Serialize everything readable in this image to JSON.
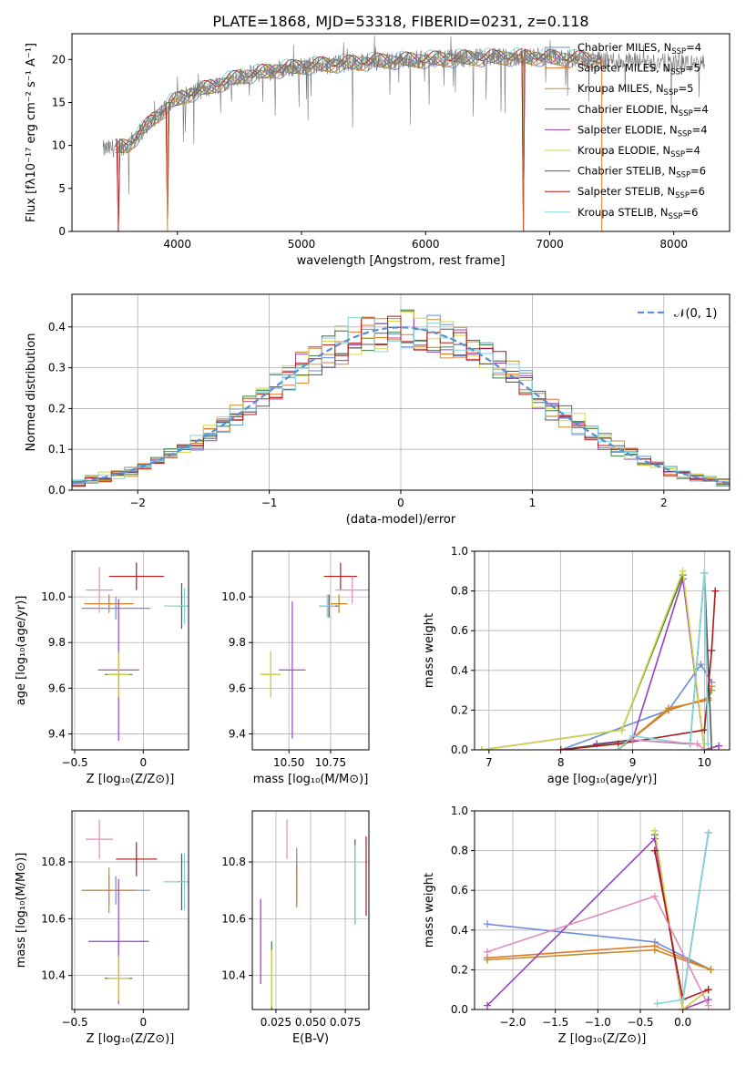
{
  "figure_title": "PLATE=1868, MJD=53318, FIBERID=0231, z=0.118",
  "model_colors": {
    "Chabrier MILES": "#6a8fd6",
    "Salpeter MILES": "#e07a28",
    "Kroupa MILES": "#c98a2e",
    "Chabrier ELODIE": "#3f7f3f",
    "Salpeter ELODIE": "#9a3fc0",
    "Kroupa ELODIE": "#d4d44a",
    "Chabrier STELIB": "#555555",
    "Salpeter STELIB": "#b01818",
    "Kroupa STELIB": "#7fd6dc"
  },
  "chart_data": [
    {
      "id": "spectrum",
      "type": "line",
      "title": "PLATE=1868, MJD=53318, FIBERID=0231, z=0.118",
      "xlabel": "wavelength [Angstrom, rest frame]",
      "ylabel": "Flux [fλ10⁻¹⁷ erg cm⁻² s⁻¹ A⁻¹]",
      "xlim": [
        3150,
        8450
      ],
      "ylim": [
        0,
        23
      ],
      "xticks": [
        4000,
        5000,
        6000,
        7000,
        8000
      ],
      "yticks": [
        0,
        5,
        10,
        15,
        20
      ],
      "grid": false,
      "legend_position": "top-right",
      "legend": [
        {
          "label": "Chabrier MILES, N",
          "sub": "SSP",
          "suffix": "=4",
          "color": "#6a8fd6"
        },
        {
          "label": "Salpeter MILES, N",
          "sub": "SSP",
          "suffix": "=5",
          "color": "#e07a28"
        },
        {
          "label": "Kroupa MILES, N",
          "sub": "SSP",
          "suffix": "=5",
          "color": "#c98a2e"
        },
        {
          "label": "Chabrier ELODIE, N",
          "sub": "SSP",
          "suffix": "=4",
          "color": "#3f7f3f"
        },
        {
          "label": "Salpeter ELODIE, N",
          "sub": "SSP",
          "suffix": "=4",
          "color": "#9a3fc0"
        },
        {
          "label": "Kroupa ELODIE, N",
          "sub": "SSP",
          "suffix": "=4",
          "color": "#d4d44a"
        },
        {
          "label": "Chabrier STELIB, N",
          "sub": "SSP",
          "suffix": "=6",
          "color": "#555555"
        },
        {
          "label": "Salpeter STELIB, N",
          "sub": "SSP",
          "suffix": "=6",
          "color": "#b01818"
        },
        {
          "label": "Kroupa STELIB, N",
          "sub": "SSP",
          "suffix": "=6",
          "color": "#7fd6dc"
        }
      ],
      "continuum": {
        "x": [
          3400,
          3600,
          3800,
          3950,
          4100,
          4300,
          4500,
          4800,
          5000,
          5300,
          5600,
          6000,
          6400,
          6800,
          7200,
          7600,
          8000,
          8250
        ],
        "y": [
          9.5,
          10.0,
          13.0,
          15.0,
          16.0,
          17.0,
          18.0,
          18.8,
          19.2,
          19.5,
          19.8,
          20.0,
          20.2,
          20.3,
          20.1,
          19.8,
          19.6,
          19.5
        ]
      },
      "data_range": [
        3400,
        8250
      ],
      "model_range": [
        3500,
        7420
      ],
      "dropouts": [
        3520,
        3920,
        6790,
        7420
      ]
    },
    {
      "id": "residual_histogram",
      "type": "step",
      "xlabel": "(data-model)/error",
      "ylabel": "Normed distribution",
      "xlim": [
        -2.5,
        2.5
      ],
      "ylim": [
        0,
        0.48
      ],
      "xticks": [
        -2,
        -1,
        0,
        1,
        2
      ],
      "yticks": [
        0,
        0.1,
        0.2,
        0.3,
        0.4
      ],
      "grid": true,
      "legend_position": "top-right",
      "legend": [
        {
          "label": "𝒩(0, 1)",
          "color": "#5a8fd6",
          "style": "dashed"
        }
      ],
      "bin_width": 0.1,
      "bin_start": -2.5,
      "envelope": "gaussian",
      "peak_value": 0.46
    },
    {
      "id": "age_vs_Z",
      "type": "errorbar",
      "xlabel": "Z [log₁₀(Z/Z⊙)]",
      "ylabel": "age  [log₁₀(age/yr)]",
      "xlim": [
        -0.52,
        0.33
      ],
      "ylim": [
        9.33,
        10.2
      ],
      "xticks": [
        -0.5,
        0.0
      ],
      "yticks": [
        9.4,
        9.6,
        9.8,
        10.0
      ],
      "grid": true,
      "points": [
        {
          "model": "Chabrier MILES",
          "x": -0.2,
          "y": 9.95,
          "xerr": 0.25,
          "yerr": 0.05
        },
        {
          "model": "Salpeter MILES",
          "x": -0.25,
          "y": 9.97,
          "xerr": 0.18,
          "yerr": 0.04
        },
        {
          "model": "Kroupa MILES",
          "x": -0.25,
          "y": 9.97,
          "xerr": 0.15,
          "yerr": 0.04
        },
        {
          "model": "Chabrier ELODIE",
          "x": -0.18,
          "y": 9.66,
          "xerr": 0.1,
          "yerr": 0.1
        },
        {
          "model": "Salpeter ELODIE",
          "x": -0.18,
          "y": 9.68,
          "xerr": 0.15,
          "yerr": 0.31
        },
        {
          "model": "Kroupa ELODIE",
          "x": -0.18,
          "y": 9.66,
          "xerr": 0.08,
          "yerr": 0.1
        },
        {
          "model": "Chabrier STELIB",
          "x": 0.28,
          "y": 9.96,
          "xerr": 0.03,
          "yerr": 0.1
        },
        {
          "model": "Salpeter STELIB",
          "x": -0.05,
          "y": 10.09,
          "xerr": 0.2,
          "yerr": 0.06
        },
        {
          "model": "Kroupa STELIB",
          "x": 0.3,
          "y": 9.96,
          "xerr": 0.15,
          "yerr": 0.08
        },
        {
          "model": "Pink",
          "x": -0.32,
          "y": 10.03,
          "xerr": 0.1,
          "yerr": 0.1
        }
      ]
    },
    {
      "id": "age_vs_mass",
      "type": "errorbar",
      "xlabel": "mass [log₁₀(M/M⊙)]",
      "ylabel": "",
      "xlim": [
        10.28,
        10.98
      ],
      "ylim": [
        9.33,
        10.2
      ],
      "xticks": [
        10.5,
        10.75
      ],
      "xticklabels": [
        "10.50",
        "10.75"
      ],
      "yticks": [
        9.4,
        9.6,
        9.8,
        10.0
      ],
      "grid": true,
      "points": [
        {
          "model": "Chabrier MILES",
          "x": 10.74,
          "y": 9.96,
          "xerr": 0.06,
          "yerr": 0.05
        },
        {
          "model": "Salpeter MILES",
          "x": 10.8,
          "y": 9.97,
          "xerr": 0.05,
          "yerr": 0.04
        },
        {
          "model": "Kroupa MILES",
          "x": 10.8,
          "y": 9.97,
          "xerr": 0.05,
          "yerr": 0.04
        },
        {
          "model": "Chabrier ELODIE",
          "x": 10.39,
          "y": 9.66,
          "xerr": 0.06,
          "yerr": 0.1
        },
        {
          "model": "Salpeter ELODIE",
          "x": 10.52,
          "y": 9.68,
          "xerr": 0.08,
          "yerr": 0.3
        },
        {
          "model": "Kroupa ELODIE",
          "x": 10.39,
          "y": 9.66,
          "xerr": 0.06,
          "yerr": 0.1
        },
        {
          "model": "Chabrier STELIB",
          "x": 10.74,
          "y": 9.96,
          "xerr": 0.05,
          "yerr": 0.05
        },
        {
          "model": "Salpeter STELIB",
          "x": 10.81,
          "y": 10.09,
          "xerr": 0.1,
          "yerr": 0.06
        },
        {
          "model": "Kroupa STELIB",
          "x": 10.73,
          "y": 9.96,
          "xerr": 0.05,
          "yerr": 0.05
        },
        {
          "model": "Pink",
          "x": 10.88,
          "y": 10.03,
          "xerr": 0.1,
          "yerr": 0.06
        }
      ]
    },
    {
      "id": "weight_vs_age",
      "type": "line",
      "xlabel": "age  [log₁₀(age/yr)]",
      "ylabel": "mass weight",
      "xlim": [
        6.8,
        10.35
      ],
      "ylim": [
        0,
        1.0
      ],
      "xticks": [
        7,
        8,
        9,
        10
      ],
      "yticks": [
        0,
        0.2,
        0.4,
        0.6,
        0.8,
        1.0
      ],
      "grid": true,
      "series": [
        {
          "model": "Chabrier MILES",
          "x": [
            8.0,
            9.5,
            9.95,
            10.1
          ],
          "y": [
            0.0,
            0.2,
            0.43,
            0.34
          ]
        },
        {
          "model": "Salpeter MILES",
          "x": [
            8.8,
            9.5,
            10.05,
            10.1
          ],
          "y": [
            0.0,
            0.2,
            0.26,
            0.32
          ]
        },
        {
          "model": "Kroupa MILES",
          "x": [
            8.8,
            9.5,
            10.05,
            10.1
          ],
          "y": [
            0.0,
            0.21,
            0.25,
            0.3
          ]
        },
        {
          "model": "Chabrier ELODIE",
          "x": [
            6.9,
            8.85,
            9.7,
            10.0
          ],
          "y": [
            0.0,
            0.1,
            0.88,
            0.0
          ]
        },
        {
          "model": "Salpeter ELODIE",
          "x": [
            8.5,
            9.0,
            9.7,
            10.0,
            10.2
          ],
          "y": [
            0.03,
            0.05,
            0.86,
            0.0,
            0.02
          ]
        },
        {
          "model": "Kroupa ELODIE",
          "x": [
            6.9,
            8.85,
            9.7,
            10.0
          ],
          "y": [
            0.0,
            0.1,
            0.9,
            0.0
          ]
        },
        {
          "model": "Chabrier STELIB",
          "x": [
            8.0,
            9.0,
            9.8,
            10.0,
            10.1
          ],
          "y": [
            0.0,
            0.05,
            0.03,
            0.89,
            0.0
          ]
        },
        {
          "model": "Salpeter STELIB",
          "x": [
            8.0,
            8.8,
            10.0,
            10.1,
            10.15
          ],
          "y": [
            0.0,
            0.03,
            0.1,
            0.5,
            0.8
          ]
        },
        {
          "model": "Kroupa STELIB",
          "x": [
            8.8,
            9.0,
            9.8,
            10.0,
            10.05
          ],
          "y": [
            0.0,
            0.07,
            0.03,
            0.89,
            0.03
          ]
        },
        {
          "model": "Pink",
          "x": [
            9.0,
            9.9,
            10.0
          ],
          "y": [
            0.05,
            0.03,
            0.0
          ]
        }
      ]
    },
    {
      "id": "mass_vs_Z",
      "type": "errorbar",
      "xlabel": "Z [log₁₀(Z/Z⊙)]",
      "ylabel": "mass [log₁₀(M/M⊙)]",
      "xlim": [
        -0.52,
        0.33
      ],
      "ylim": [
        10.28,
        10.98
      ],
      "xticks": [
        -0.5,
        0.0
      ],
      "yticks": [
        10.4,
        10.6,
        10.8
      ],
      "grid": true,
      "points": [
        {
          "model": "Chabrier MILES",
          "x": -0.2,
          "y": 10.7,
          "xerr": 0.25,
          "yerr": 0.05
        },
        {
          "model": "Salpeter MILES",
          "x": -0.25,
          "y": 10.7,
          "xerr": 0.2,
          "yerr": 0.08
        },
        {
          "model": "Kroupa MILES",
          "x": -0.25,
          "y": 10.7,
          "xerr": 0.15,
          "yerr": 0.05
        },
        {
          "model": "Chabrier ELODIE",
          "x": -0.18,
          "y": 10.39,
          "xerr": 0.1,
          "yerr": 0.08
        },
        {
          "model": "Salpeter ELODIE",
          "x": -0.18,
          "y": 10.52,
          "xerr": 0.22,
          "yerr": 0.22
        },
        {
          "model": "Kroupa ELODIE",
          "x": -0.18,
          "y": 10.39,
          "xerr": 0.08,
          "yerr": 0.08
        },
        {
          "model": "Chabrier STELIB",
          "x": 0.28,
          "y": 10.73,
          "xerr": 0.03,
          "yerr": 0.1
        },
        {
          "model": "Salpeter STELIB",
          "x": -0.05,
          "y": 10.81,
          "xerr": 0.15,
          "yerr": 0.06
        },
        {
          "model": "Kroupa STELIB",
          "x": 0.3,
          "y": 10.73,
          "xerr": 0.15,
          "yerr": 0.1
        },
        {
          "model": "Pink",
          "x": -0.32,
          "y": 10.88,
          "xerr": 0.1,
          "yerr": 0.07
        }
      ]
    },
    {
      "id": "mass_vs_EBV",
      "type": "errorbar",
      "xlabel": "E(B-V)",
      "ylabel": "",
      "xlim": [
        0.008,
        0.092
      ],
      "ylim": [
        10.28,
        10.98
      ],
      "xticks": [
        0.025,
        0.05,
        0.075
      ],
      "xticklabels": [
        "0.025",
        "0.050",
        "0.075"
      ],
      "yticks": [
        10.4,
        10.6,
        10.8
      ],
      "grid": true,
      "points": [
        {
          "model": "Chabrier MILES",
          "x": 0.04,
          "y": 10.75,
          "xerr": 0,
          "yerr": 0.1
        },
        {
          "model": "Salpeter MILES",
          "x": 0.04,
          "y": 10.72,
          "xerr": 0,
          "yerr": 0.08
        },
        {
          "model": "Kroupa MILES",
          "x": 0.04,
          "y": 10.72,
          "xerr": 0,
          "yerr": 0.06
        },
        {
          "model": "Chabrier ELODIE",
          "x": 0.022,
          "y": 10.4,
          "xerr": 0,
          "yerr": 0.12
        },
        {
          "model": "Salpeter ELODIE",
          "x": 0.014,
          "y": 10.52,
          "xerr": 0,
          "yerr": 0.15
        },
        {
          "model": "Kroupa ELODIE",
          "x": 0.022,
          "y": 10.39,
          "xerr": 0,
          "yerr": 0.1
        },
        {
          "model": "Chabrier STELIB",
          "x": 0.082,
          "y": 10.73,
          "xerr": 0,
          "yerr": 0.15
        },
        {
          "model": "Salpeter STELIB",
          "x": 0.09,
          "y": 10.75,
          "xerr": 0,
          "yerr": 0.14
        },
        {
          "model": "Kroupa STELIB",
          "x": 0.082,
          "y": 10.72,
          "xerr": 0,
          "yerr": 0.14
        },
        {
          "model": "Pink",
          "x": 0.033,
          "y": 10.88,
          "xerr": 0,
          "yerr": 0.07
        }
      ]
    },
    {
      "id": "weight_vs_Z",
      "type": "line",
      "xlabel": "Z [log₁₀(Z/Z⊙)]",
      "ylabel": "mass weight",
      "xlim": [
        -2.45,
        0.55
      ],
      "ylim": [
        0,
        1.0
      ],
      "xticks": [
        -2.0,
        -1.5,
        -1.0,
        -0.5,
        0.0
      ],
      "xticklabels": [
        "−2.0",
        "−1.5",
        "−1.0",
        "−0.5",
        "0.0"
      ],
      "yticks": [
        0,
        0.2,
        0.4,
        0.6,
        0.8,
        1.0
      ],
      "grid": true,
      "series": [
        {
          "model": "Chabrier MILES",
          "x": [
            -2.3,
            -0.33,
            0.33
          ],
          "y": [
            0.43,
            0.34,
            0.2
          ]
        },
        {
          "model": "Salpeter MILES",
          "x": [
            -2.3,
            -0.33,
            0.33
          ],
          "y": [
            0.26,
            0.32,
            0.2
          ]
        },
        {
          "model": "Kroupa MILES",
          "x": [
            -2.3,
            -0.33,
            0.33
          ],
          "y": [
            0.25,
            0.3,
            0.2
          ]
        },
        {
          "model": "Chabrier ELODIE",
          "x": [
            -0.33,
            0.0,
            0.3
          ],
          "y": [
            0.88,
            0.0,
            0.1
          ]
        },
        {
          "model": "Salpeter ELODIE",
          "x": [
            -2.3,
            -0.33,
            0.0,
            0.3
          ],
          "y": [
            0.02,
            0.86,
            0.0,
            0.05
          ]
        },
        {
          "model": "Kroupa ELODIE",
          "x": [
            -0.33,
            0.0,
            0.3
          ],
          "y": [
            0.9,
            0.0,
            0.1
          ]
        },
        {
          "model": "Chabrier STELIB",
          "x": [
            -0.33,
            0.0,
            0.3
          ],
          "y": [
            0.8,
            0.05,
            0.89
          ]
        },
        {
          "model": "Salpeter STELIB",
          "x": [
            -0.33,
            0.0,
            0.3
          ],
          "y": [
            0.8,
            0.05,
            0.1
          ]
        },
        {
          "model": "Kroupa STELIB",
          "x": [
            -0.3,
            0.0,
            0.3
          ],
          "y": [
            0.03,
            0.05,
            0.89
          ]
        },
        {
          "model": "Pink",
          "x": [
            -2.3,
            -0.33,
            0.3
          ],
          "y": [
            0.29,
            0.57,
            0.02
          ]
        }
      ]
    }
  ]
}
